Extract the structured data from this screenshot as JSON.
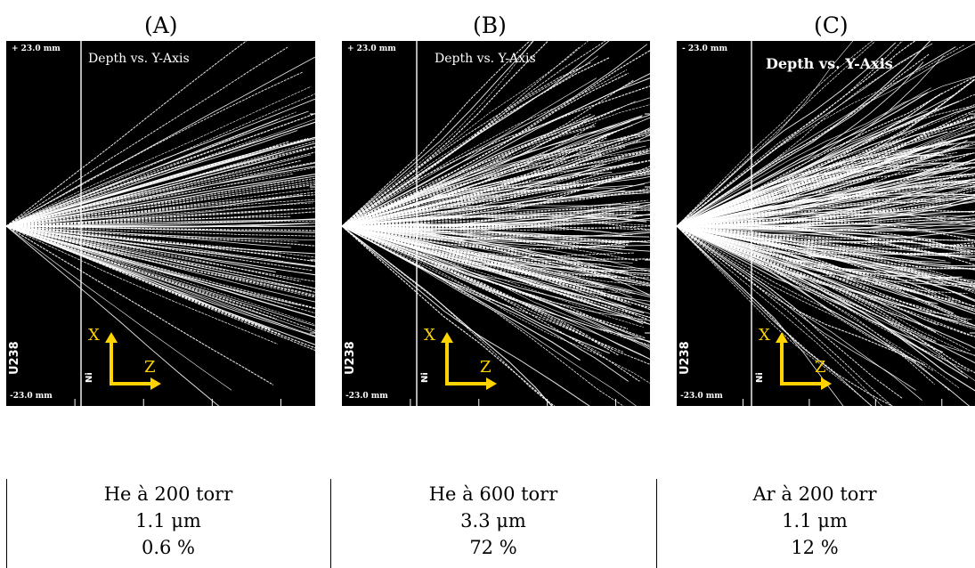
{
  "panels": [
    {
      "letter": "(A)",
      "range_top": "+ 23.0 mm",
      "range_bottom": "-23.0 mm",
      "title": "Depth vs. Y-Axis",
      "target": "U238",
      "layer": "Ni",
      "axis_x": "X",
      "axis_z": "Z",
      "gas": "He à 200 torr",
      "thickness": "1.1 μm",
      "percent": "0.6 %"
    },
    {
      "letter": "(B)",
      "range_top": "+ 23.0 mm",
      "range_bottom": "-23.0 mm",
      "title": "Depth vs. Y-Axis",
      "target": "U238",
      "layer": "Ni",
      "axis_x": "X",
      "axis_z": "Z",
      "gas": "He à 600 torr",
      "thickness": "3.3 μm",
      "percent": "72 %"
    },
    {
      "letter": "(C)",
      "range_top": "- 23.0 mm",
      "range_bottom": "-23.0 mm",
      "title": "Depth vs. Y-Axis",
      "target": "U238",
      "layer": "Ni",
      "axis_x": "X",
      "axis_z": "Z",
      "gas": "Ar à 200 torr",
      "thickness": "1.1 μm",
      "percent": "12 %"
    }
  ],
  "colors": {
    "background": "#000000",
    "tracks": "#ffffff",
    "axes_arrows": "#ffd400"
  }
}
